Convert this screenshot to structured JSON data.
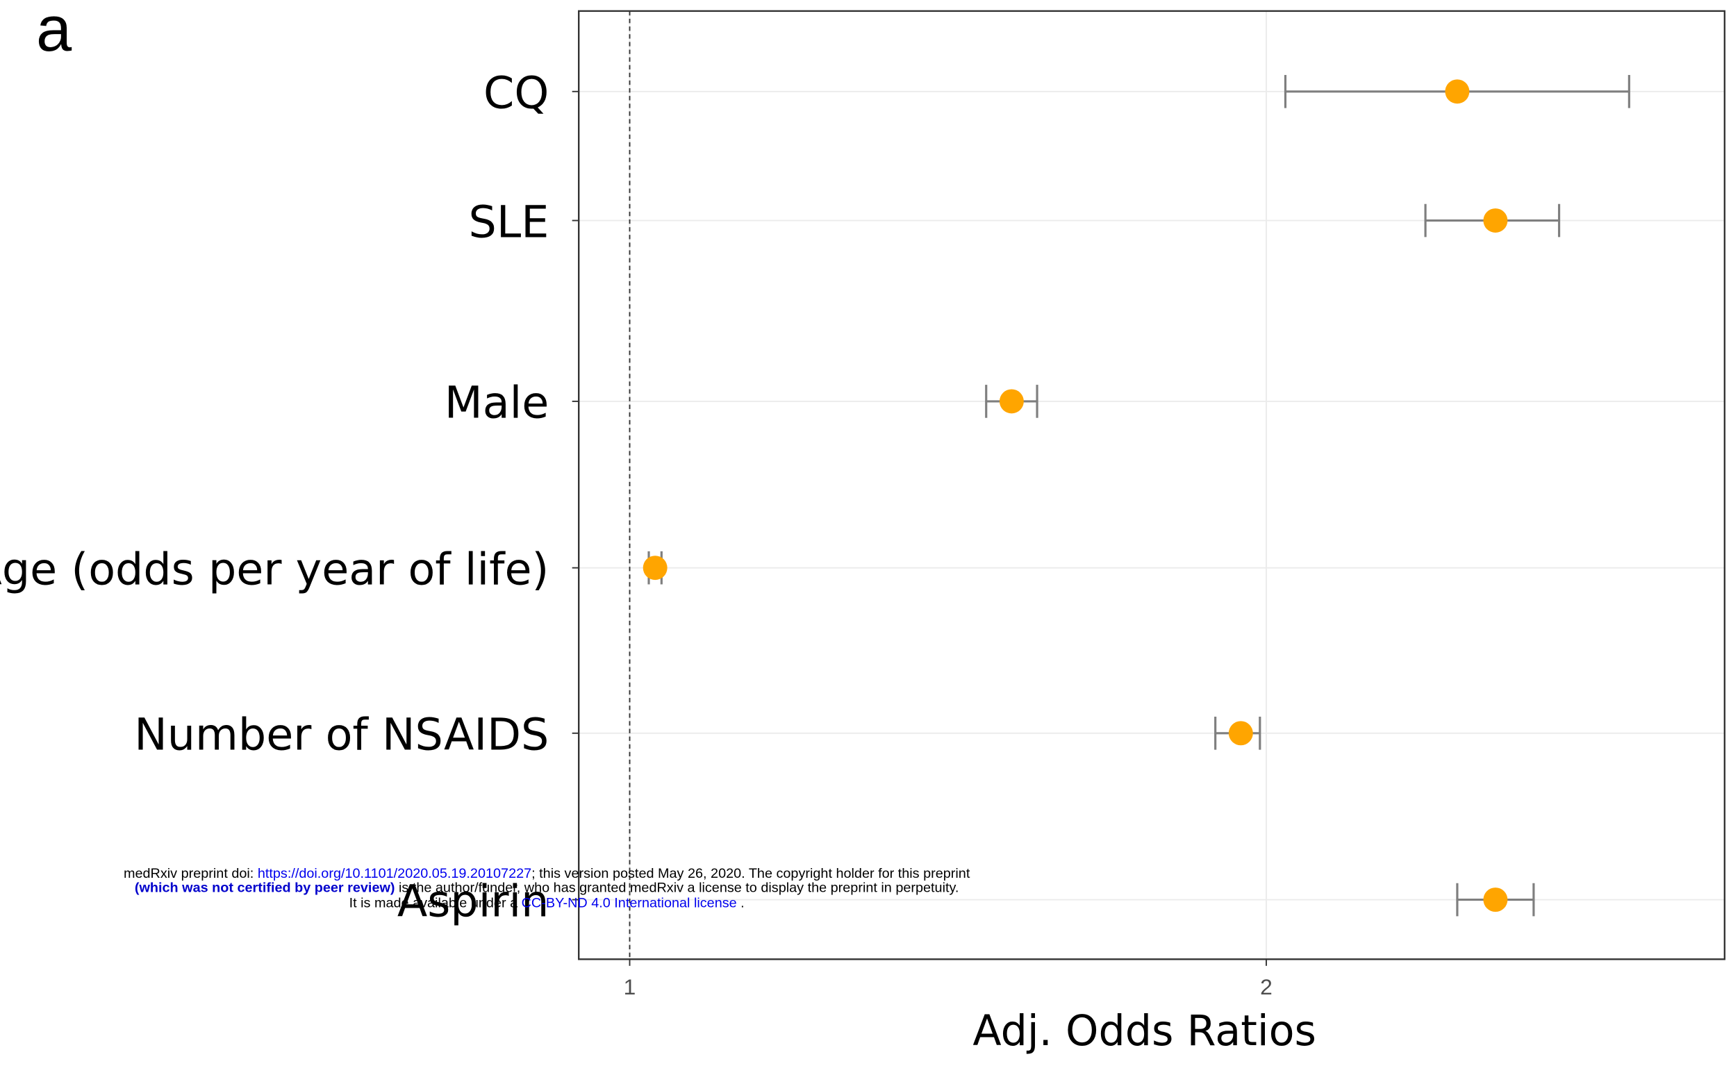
{
  "panel_label": "a",
  "chart_data": {
    "type": "forest",
    "x_label": "Adj. Odds Ratios",
    "categories": [
      "CQ",
      "SLE",
      "Male",
      "Age (odds per year of life)",
      "Number of NSAIDS",
      "Aspirin"
    ],
    "series": [
      {
        "color": "#ffa500",
        "error_color": "#7f7f7f",
        "values": [
          2.3,
          2.36,
          1.6,
          1.04,
          1.96,
          2.36
        ],
        "lower": [
          2.03,
          2.25,
          1.56,
          1.03,
          1.92,
          2.3
        ],
        "upper": [
          2.57,
          2.46,
          1.64,
          1.05,
          1.99,
          2.42
        ]
      }
    ],
    "xlim": [
      0.92,
      2.72
    ],
    "xticks": [
      1,
      2
    ],
    "reference_line": 1,
    "grid": true
  },
  "watermark": {
    "lines": [
      [
        "medRxiv preprint doi: ",
        "https://doi.org/10.1101/2020.05.19.20107227",
        "; this version posted May 26, 2020. The copyright holder for this preprint"
      ],
      [
        "(which was not certified by peer review)",
        " is the author/funder, who has granted medRxiv a license to display the preprint in perpetuity."
      ],
      [
        "It is made available under a ",
        "CC-BY-ND 4.0 International license",
        " ."
      ]
    ]
  }
}
